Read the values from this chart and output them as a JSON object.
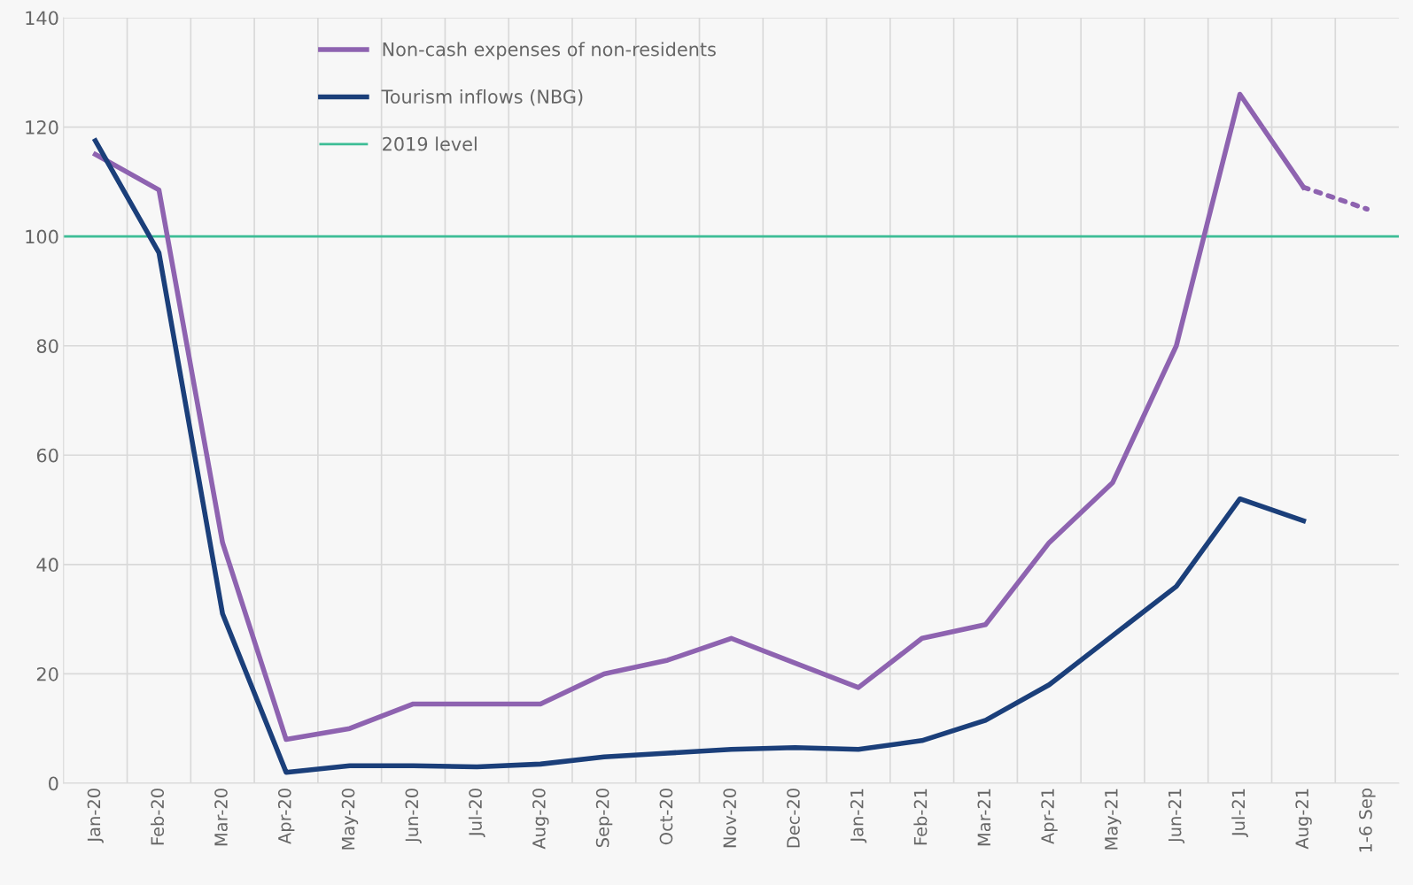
{
  "chart_data": {
    "type": "line",
    "categories": [
      "Jan-20",
      "Feb-20",
      "Mar-20",
      "Apr-20",
      "May-20",
      "Jun-20",
      "Jul-20",
      "Aug-20",
      "Sep-20",
      "Oct-20",
      "Nov-20",
      "Dec-20",
      "Jan-21",
      "Feb-21",
      "Mar-21",
      "Apr-21",
      "May-21",
      "Jun-21",
      "Jul-21",
      "Aug-21",
      "1-6 Sep"
    ],
    "series": [
      {
        "name": "Non-cash expenses of non-residents",
        "color": "#8e63b0",
        "line_style": "solid",
        "values": [
          115,
          108.5,
          44,
          8,
          10,
          14.5,
          14.5,
          14.5,
          20,
          22.5,
          26.5,
          22,
          17.5,
          26.5,
          29,
          44,
          55,
          80,
          126,
          109,
          null
        ]
      },
      {
        "color": "#8e63b0",
        "line_style": "dotted",
        "values": [
          null,
          null,
          null,
          null,
          null,
          null,
          null,
          null,
          null,
          null,
          null,
          null,
          null,
          null,
          null,
          null,
          null,
          null,
          null,
          109,
          105
        ]
      },
      {
        "name": "Tourism inflows (NBG)",
        "color": "#1b3f7a",
        "line_style": "solid",
        "values": [
          117.5,
          97,
          31,
          2,
          3.2,
          3.2,
          3,
          3.5,
          4.8,
          5.5,
          6.2,
          6.5,
          6.2,
          7.8,
          11.5,
          18,
          27,
          36,
          52,
          48,
          null
        ]
      }
    ],
    "ref_lines": [
      {
        "axis": "y",
        "value": 100,
        "label": "2019 level",
        "color": "#3dbd96"
      }
    ],
    "ylim": [
      0,
      140
    ],
    "yticks": [
      0,
      20,
      40,
      60,
      80,
      100,
      120,
      140
    ],
    "grid": true,
    "legend": "top left",
    "marker": "none"
  }
}
